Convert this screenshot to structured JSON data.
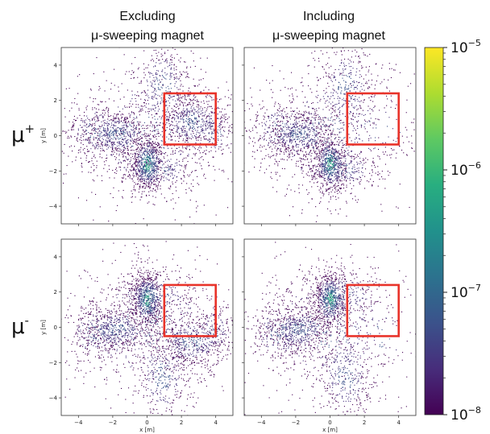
{
  "column_titles": [
    {
      "line1": "Excluding",
      "line2": "μ-sweeping magnet"
    },
    {
      "line1": "Including",
      "line2": "μ-sweeping magnet"
    }
  ],
  "row_labels": [
    {
      "base": "μ",
      "sup": "+"
    },
    {
      "base": "μ",
      "sup": "-"
    }
  ],
  "chart_data": {
    "type": "heatmap",
    "xlabel": "x [m]",
    "ylabel": "y [m]",
    "xlim": [
      -5,
      5
    ],
    "ylim": [
      -5,
      5
    ],
    "xticks": [
      -4,
      -2,
      0,
      2,
      4
    ],
    "yticks": [
      -4,
      -2,
      0,
      2,
      4
    ],
    "xtick_labels": [
      "−4",
      "−2",
      "0",
      "2",
      "4"
    ],
    "ytick_labels": [
      "−4",
      "−2",
      "0",
      "2",
      "4"
    ],
    "grid": false,
    "colorscale": "viridis",
    "colorbar": {
      "scale": "log",
      "range": [
        1e-08,
        1e-05
      ],
      "ticks": [
        {
          "base": "10",
          "exp": "−5",
          "value": 1e-05
        },
        {
          "base": "10",
          "exp": "−6",
          "value": 1e-06
        },
        {
          "base": "10",
          "exp": "−7",
          "value": 1e-07
        },
        {
          "base": "10",
          "exp": "−8",
          "value": 1e-08
        }
      ]
    },
    "highlight_box": {
      "x": [
        1,
        4
      ],
      "y": [
        -0.5,
        2.4
      ],
      "color": "#e8332a"
    },
    "panels": [
      {
        "row": 0,
        "col": 0,
        "particle": "mu-plus",
        "magnet": false
      },
      {
        "row": 0,
        "col": 1,
        "particle": "mu-plus",
        "magnet": true
      },
      {
        "row": 1,
        "col": 0,
        "particle": "mu-minus",
        "magnet": false
      },
      {
        "row": 1,
        "col": 1,
        "particle": "mu-minus",
        "magnet": true
      }
    ]
  }
}
